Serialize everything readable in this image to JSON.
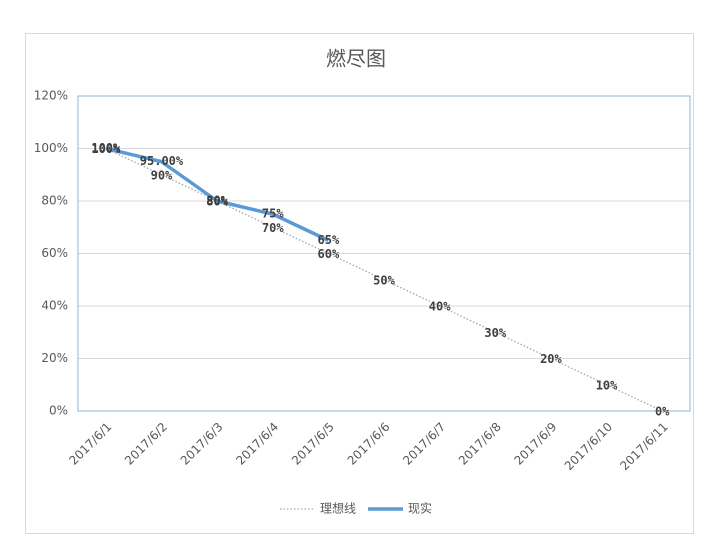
{
  "chart_data": {
    "type": "line",
    "title": "燃尽图",
    "categories": [
      "2017/6/1",
      "2017/6/2",
      "2017/6/3",
      "2017/6/4",
      "2017/6/5",
      "2017/6/6",
      "2017/6/7",
      "2017/6/8",
      "2017/6/9",
      "2017/6/10",
      "2017/6/11"
    ],
    "series": [
      {
        "name": "理想线",
        "color": "#a6a6a6",
        "dash": "dotted",
        "values": [
          100,
          90,
          80,
          70,
          60,
          50,
          40,
          30,
          20,
          10,
          0
        ],
        "value_labels": [
          "100%",
          "90%",
          "80%",
          "70%",
          "60%",
          "50%",
          "40%",
          "30%",
          "20%",
          "10%",
          "0%"
        ]
      },
      {
        "name": "现实",
        "color": "#5b9bd5",
        "dash": "solid",
        "values": [
          100,
          95,
          80,
          75,
          65,
          null,
          null,
          null,
          null,
          null,
          null
        ],
        "value_labels": [
          "100%",
          "95.00%",
          "80%",
          "75%",
          "65%",
          null,
          null,
          null,
          null,
          null,
          null
        ]
      }
    ],
    "ylim": [
      0,
      120
    ],
    "yticks": [
      {
        "value": 0,
        "label": "0%"
      },
      {
        "value": 20,
        "label": "20%"
      },
      {
        "value": 40,
        "label": "40%"
      },
      {
        "value": 60,
        "label": "60%"
      },
      {
        "value": 80,
        "label": "80%"
      },
      {
        "value": 100,
        "label": "100%"
      },
      {
        "value": 120,
        "label": "120%"
      }
    ],
    "grid": true,
    "legend": "bottom"
  }
}
